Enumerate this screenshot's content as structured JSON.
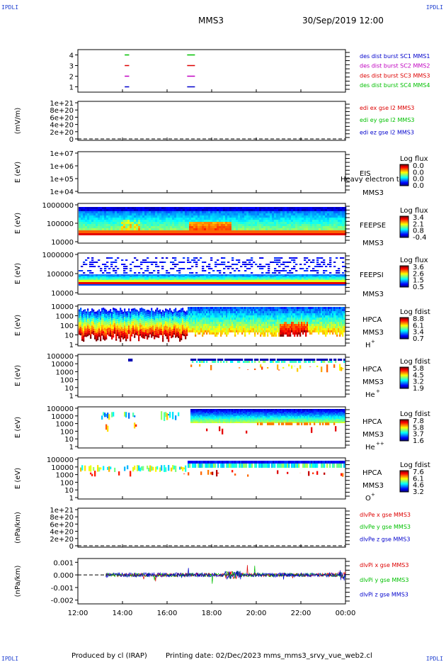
{
  "corners": {
    "tl": "IPDLI",
    "tr": "IPDLI",
    "bl": "IPDLI",
    "br": "IPDLI"
  },
  "header": {
    "spacecraft": "MMS3",
    "datetime": "30/Sep/2019 12:00"
  },
  "footer": {
    "produced_by": "Produced by cl (IRAP)",
    "printing_date": "Printing date: 02/Dec/2023",
    "script": "mms_mms3_srvy_vue_web2.cl"
  },
  "colors": {
    "red": "#dd0000",
    "green": "#00c000",
    "magenta": "#c000c0",
    "blue": "#0000cc"
  },
  "chart_data": [
    {
      "type": "scatter",
      "y_ticks": [
        "1",
        "2",
        "3",
        "4"
      ],
      "ylim": [
        0.5,
        4.5
      ],
      "legend": [
        {
          "label": "des dist burst SC1 MMS1",
          "color": "#0000cc"
        },
        {
          "label": "des dist burst SC2 MMS2",
          "color": "#c000c0"
        },
        {
          "label": "des dist burst SC3 MMS3",
          "color": "#dd0000"
        },
        {
          "label": "des dist burst SC4 MMS4",
          "color": "#00c000"
        }
      ],
      "series": [
        {
          "spacecraft": 1,
          "intervals": [
            [
              14.1,
              14.3
            ],
            [
              16.9,
              17.25
            ]
          ]
        },
        {
          "spacecraft": 2,
          "intervals": [
            [
              14.1,
              14.3
            ],
            [
              16.9,
              17.25
            ]
          ]
        },
        {
          "spacecraft": 3,
          "intervals": [
            [
              14.1,
              14.3
            ],
            [
              16.9,
              17.25
            ]
          ]
        },
        {
          "spacecraft": 4,
          "intervals": [
            [
              14.1,
              14.3
            ],
            [
              16.9,
              17.25
            ]
          ]
        }
      ]
    },
    {
      "type": "line",
      "ylabel": "(mV/m)",
      "y_ticks": [
        "1e+21",
        "8e+20",
        "6e+20",
        "4e+20",
        "2e+20",
        "0"
      ],
      "legend": [
        {
          "label": "edi ex gse l2 MMS3",
          "color": "#dd0000"
        },
        {
          "label": "edi ey gse l2 MMS3",
          "color": "#00c000"
        },
        {
          "label": "edi ez gse l2 MMS3",
          "color": "#0000cc"
        }
      ]
    },
    {
      "type": "heatmap",
      "ylabel": "E (eV)",
      "y_ticks": [
        "1e+07",
        "1e+06",
        "1e+05",
        "1e+04"
      ],
      "labels": [
        "EIS",
        "MMS3"
      ],
      "overlay_text": "Heavy electron to",
      "colorbar_title": "Log flux",
      "colorbar_ticks": [
        "0.0",
        "0.0",
        "0.0",
        "0.0"
      ]
    },
    {
      "type": "heatmap",
      "ylabel": "E (eV)",
      "y_ticks": [
        "1000000",
        "100000",
        "10000"
      ],
      "labels": [
        "FEEPSE",
        "MMS3"
      ],
      "colorbar_title": "Log flux",
      "colorbar_ticks": [
        "3.4",
        "2.1",
        "0.8",
        "-0.4"
      ]
    },
    {
      "type": "heatmap",
      "ylabel": "E (eV)",
      "y_ticks": [
        "1000000",
        "100000",
        "10000"
      ],
      "labels": [
        "FEEPSI",
        "MMS3"
      ],
      "colorbar_title": "Log flux",
      "colorbar_ticks": [
        "3.6",
        "2.6",
        "1.5",
        "0.5"
      ]
    },
    {
      "type": "heatmap",
      "ylabel": "E (eV)",
      "y_ticks": [
        "10000",
        "1000",
        "100",
        "10",
        "1"
      ],
      "labels": [
        "HPCA",
        "MMS3"
      ],
      "species": "H",
      "charge": "+",
      "colorbar_title": "Log fdist",
      "colorbar_ticks": [
        "8.8",
        "6.1",
        "3.4",
        "0.7"
      ]
    },
    {
      "type": "heatmap",
      "ylabel": "E (eV)",
      "y_ticks": [
        "100000",
        "10000",
        "1000",
        "100",
        "10",
        "1"
      ],
      "labels": [
        "HPCA",
        "MMS3"
      ],
      "species": "He",
      "charge": "+",
      "colorbar_title": "Log fdist",
      "colorbar_ticks": [
        "5.8",
        "4.5",
        "3.2",
        "1.9"
      ]
    },
    {
      "type": "heatmap",
      "ylabel": "E (eV)",
      "y_ticks": [
        "100000",
        "10000",
        "1000",
        "100",
        "10",
        "1"
      ],
      "labels": [
        "HPCA",
        "MMS3"
      ],
      "species": "He",
      "charge": "++",
      "colorbar_title": "Log fdist",
      "colorbar_ticks": [
        "7.8",
        "5.8",
        "3.7",
        "1.6"
      ]
    },
    {
      "type": "heatmap",
      "ylabel": "E (eV)",
      "y_ticks": [
        "100000",
        "10000",
        "1000",
        "100",
        "10",
        "1"
      ],
      "labels": [
        "HPCA",
        "MMS3"
      ],
      "species": "O",
      "charge": "+",
      "colorbar_title": "Log fdist",
      "colorbar_ticks": [
        "7.6",
        "6.1",
        "4.6",
        "3.2"
      ]
    },
    {
      "type": "line",
      "ylabel": "(nPa/km)",
      "y_ticks": [
        "1e+21",
        "8e+20",
        "6e+20",
        "4e+20",
        "2e+20",
        "0"
      ],
      "legend": [
        {
          "label": "dlvPe x gse MMS3",
          "color": "#dd0000"
        },
        {
          "label": "dlvPe y gse MMS3",
          "color": "#00c000"
        },
        {
          "label": "dlvPe z gse MMS3",
          "color": "#0000cc"
        }
      ]
    },
    {
      "type": "line",
      "ylabel": "(nPa/km)",
      "y_ticks": [
        "0.001",
        "0.000",
        "-0.001",
        "-0.002"
      ],
      "ylim": [
        -0.0023,
        0.0013
      ],
      "legend": [
        {
          "label": "dlvPi x gse MMS3",
          "color": "#dd0000"
        },
        {
          "label": "dlvPi y gse MMS3",
          "color": "#00c000"
        },
        {
          "label": "dlvPi z gse MMS3",
          "color": "#0000cc"
        }
      ]
    }
  ],
  "x_axis": {
    "ticks": [
      "12:00",
      "14:00",
      "16:00",
      "18:00",
      "20:00",
      "22:00",
      "00:00"
    ],
    "range_hours": [
      12,
      24
    ]
  }
}
